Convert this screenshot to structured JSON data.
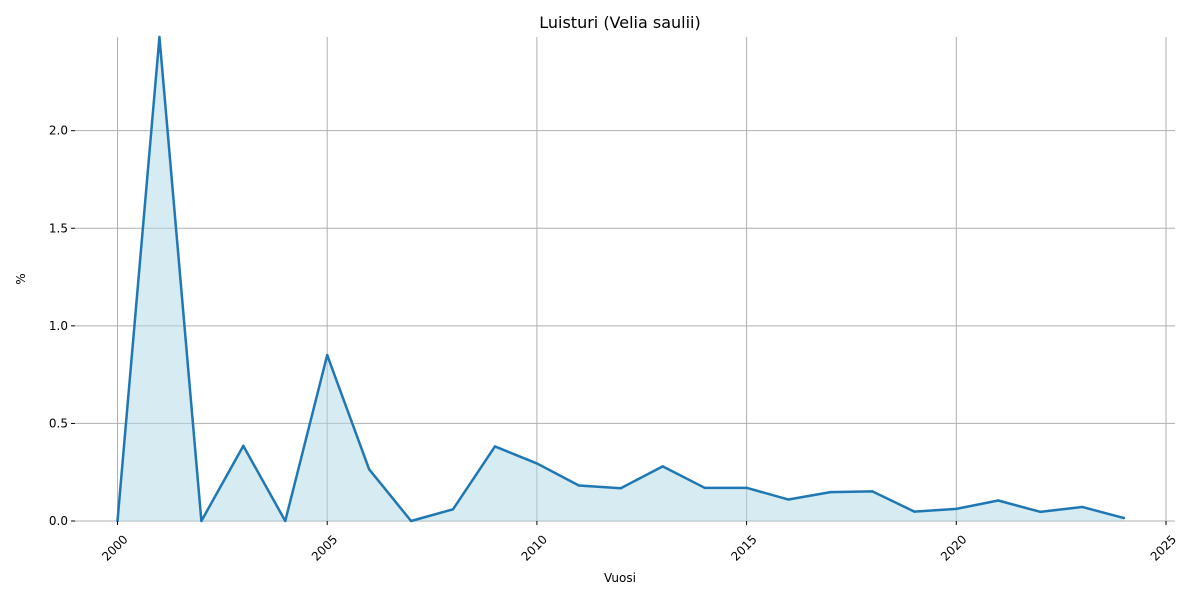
{
  "chart_data": {
    "type": "area",
    "title": "Luisturi (Velia saulii)",
    "xlabel": "Vuosi",
    "ylabel": "%",
    "xlim": [
      2000,
      2025
    ],
    "ylim": [
      0,
      2.48
    ],
    "xticks": [
      2000,
      2005,
      2010,
      2015,
      2020,
      2025
    ],
    "xtick_labels": [
      "2000",
      "2005",
      "2010",
      "2015",
      "2020",
      "2025"
    ],
    "yticks": [
      0,
      0.5,
      1.0,
      1.5,
      2.0
    ],
    "ytick_labels": [
      "0.0",
      "0.5",
      "1.0",
      "1.5",
      "2.0"
    ],
    "grid": true,
    "colors": {
      "line": "#1f77b4",
      "fill": "#add8e6"
    },
    "x": [
      2000,
      2001,
      2002,
      2003,
      2004,
      2005,
      2006,
      2007,
      2008,
      2009,
      2010,
      2011,
      2012,
      2013,
      2014,
      2015,
      2016,
      2017,
      2018,
      2019,
      2020,
      2021,
      2022,
      2023,
      2024
    ],
    "values": [
      0.0,
      2.48,
      0.0,
      0.385,
      0.0,
      0.85,
      0.265,
      0.0,
      0.06,
      0.382,
      0.295,
      0.182,
      0.168,
      0.28,
      0.17,
      0.17,
      0.11,
      0.148,
      0.152,
      0.048,
      0.062,
      0.105,
      0.047,
      0.072,
      0.015
    ]
  }
}
